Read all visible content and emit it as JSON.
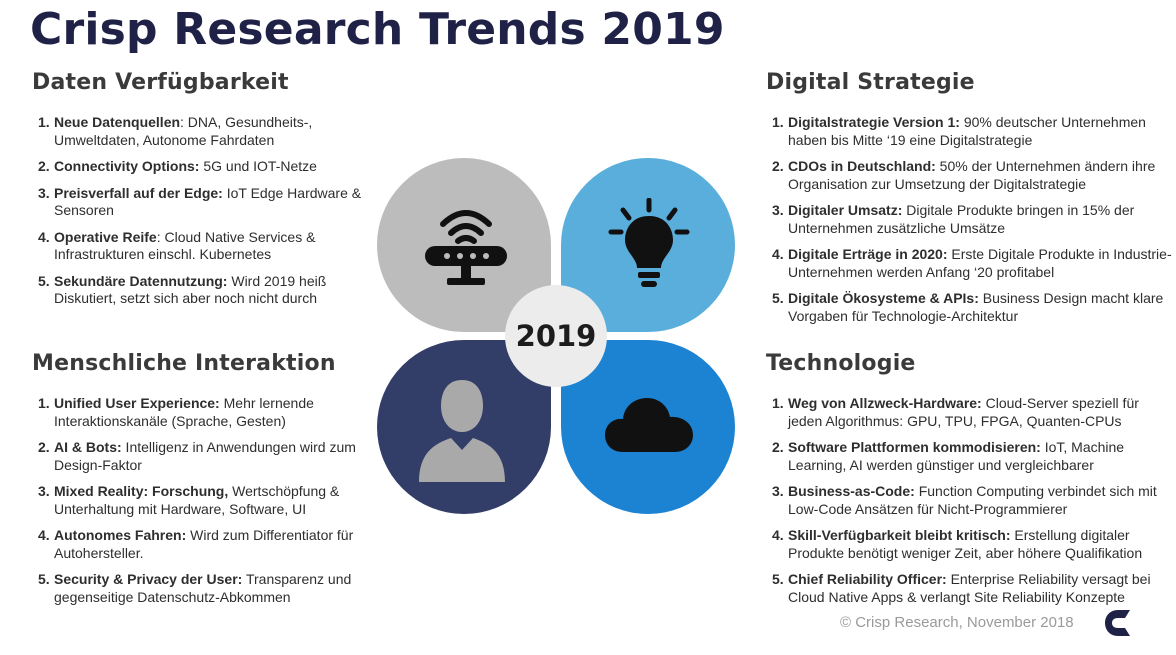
{
  "title": "Crisp Research Trends 2019",
  "center_label": "2019",
  "footer": "© Crisp Research, November 2018",
  "colors": {
    "title": "#1f2246",
    "petal_gray": "#bcbcbc",
    "petal_lightblue": "#5aaedb",
    "petal_navy": "#323d68",
    "petal_blue": "#1c82d2",
    "center": "#ececec"
  },
  "icons": [
    "router-icon",
    "lightbulb-icon",
    "person-icon",
    "cloud-icon",
    "crisp-logo-icon"
  ],
  "sections": {
    "daten": {
      "heading": "Daten Verfügbarkeit",
      "items": [
        {
          "num": "1.",
          "bold": "Neue Datenquellen",
          "text": ": DNA, Gesundheits-, Umweltdaten, Autonome Fahrdaten"
        },
        {
          "num": "2.",
          "bold": "Connectivity Options:",
          "text": " 5G und IOT-Netze"
        },
        {
          "num": "3.",
          "bold": "Preisverfall auf der Edge:",
          "text": " IoT Edge Hardware & Sensoren"
        },
        {
          "num": "4.",
          "bold": "Operative Reife",
          "text": ": Cloud Native Services & Infrastrukturen einschl. Kubernetes"
        },
        {
          "num": "5.",
          "bold": "Sekundäre Datennutzung:",
          "text": " Wird 2019 heiß Diskutiert, setzt sich aber noch nicht durch"
        }
      ]
    },
    "mensch": {
      "heading": "Menschliche Interaktion",
      "items": [
        {
          "num": "1.",
          "bold": "Unified User Experience:",
          "text": " Mehr lernende Interaktionskanäle (Sprache, Gesten)"
        },
        {
          "num": "2.",
          "bold": "AI & Bots:",
          "text": " Intelligenz in Anwendungen wird zum Design-Faktor"
        },
        {
          "num": "3.",
          "bold": "Mixed Reality: Forschung,",
          "text": " Wertschöpfung & Unterhaltung mit Hardware, Software, UI"
        },
        {
          "num": "4.",
          "bold": "Autonomes Fahren:",
          "text": " Wird zum Differentiator für Autohersteller."
        },
        {
          "num": "5.",
          "bold": "Security & Privacy der User:",
          "text": " Transparenz und gegenseitige Datenschutz-Abkommen"
        }
      ]
    },
    "strategie": {
      "heading": "Digital Strategie",
      "items": [
        {
          "num": "1.",
          "bold": "Digitalstrategie Version 1:",
          "text": " 90% deutscher Unternehmen haben bis Mitte ‘19 eine Digitalstrategie"
        },
        {
          "num": "2.",
          "bold": "CDOs in Deutschland:",
          "text": " 50% der Unternehmen ändern ihre Organisation zur Umsetzung der Digitalstrategie"
        },
        {
          "num": "3.",
          "bold": "Digitaler Umsatz:",
          "text": " Digitale Produkte bringen in 15% der Unternehmen zusätzliche Umsätze"
        },
        {
          "num": "4.",
          "bold": "Digitale Erträge in 2020:",
          "text": " Erste Digitale Produkte in Industrie-Unternehmen werden Anfang ‘20 profitabel"
        },
        {
          "num": "5.",
          "bold": "Digitale Ökosysteme & APIs:",
          "text": " Business Design macht klare Vorgaben für Technologie-Architektur"
        }
      ]
    },
    "technologie": {
      "heading": "Technologie",
      "items": [
        {
          "num": "1.",
          "bold": "Weg von Allzweck-Hardware:",
          "text": " Cloud-Server speziell für jeden Algorithmus: GPU, TPU, FPGA, Quanten-CPUs"
        },
        {
          "num": "2.",
          "bold": "Software Plattformen kommodisieren:",
          "text": " IoT, Machine Learning, AI werden günstiger und vergleichbarer"
        },
        {
          "num": "3.",
          "bold": "Business-as-Code:",
          "text": " Function Computing verbindet sich mit Low-Code Ansätzen für Nicht-Programmierer"
        },
        {
          "num": "4.",
          "bold": "Skill-Verfügbarkeit bleibt kritisch:",
          "text": " Erstellung digitaler Produkte benötigt weniger Zeit, aber höhere Qualifikation"
        },
        {
          "num": "5.",
          "bold": "Chief Reliability Officer:",
          "text": " Enterprise Reliability versagt bei Cloud Native Apps & verlangt Site Reliability Konzepte"
        }
      ]
    }
  }
}
